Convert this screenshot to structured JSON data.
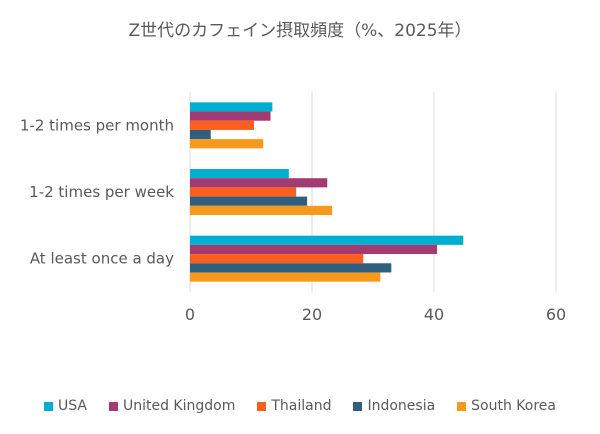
{
  "chart_data": {
    "type": "bar",
    "orientation": "horizontal",
    "title": "Z世代のカフェイン摂取頻度（%、2025年）",
    "categories": [
      "1-2 times per month",
      "1-2 times per week",
      "At least once a day"
    ],
    "series": [
      {
        "name": "USA",
        "color": "#00AECF",
        "values": [
          13.5,
          16.2,
          44.8
        ]
      },
      {
        "name": "United Kingdom",
        "color": "#A33A71",
        "values": [
          13.2,
          22.5,
          40.5
        ]
      },
      {
        "name": "Thailand",
        "color": "#FA5F1E",
        "values": [
          10.5,
          17.4,
          28.4
        ]
      },
      {
        "name": "Indonesia",
        "color": "#2F5E7E",
        "values": [
          3.4,
          19.2,
          33.0
        ]
      },
      {
        "name": "South Korea",
        "color": "#F79A1C",
        "values": [
          12.0,
          23.3,
          31.2
        ]
      }
    ],
    "xlim": [
      0,
      60
    ],
    "xticks": [
      "0",
      "20",
      "40",
      "60"
    ],
    "grid": true,
    "legend_position": "bottom"
  }
}
